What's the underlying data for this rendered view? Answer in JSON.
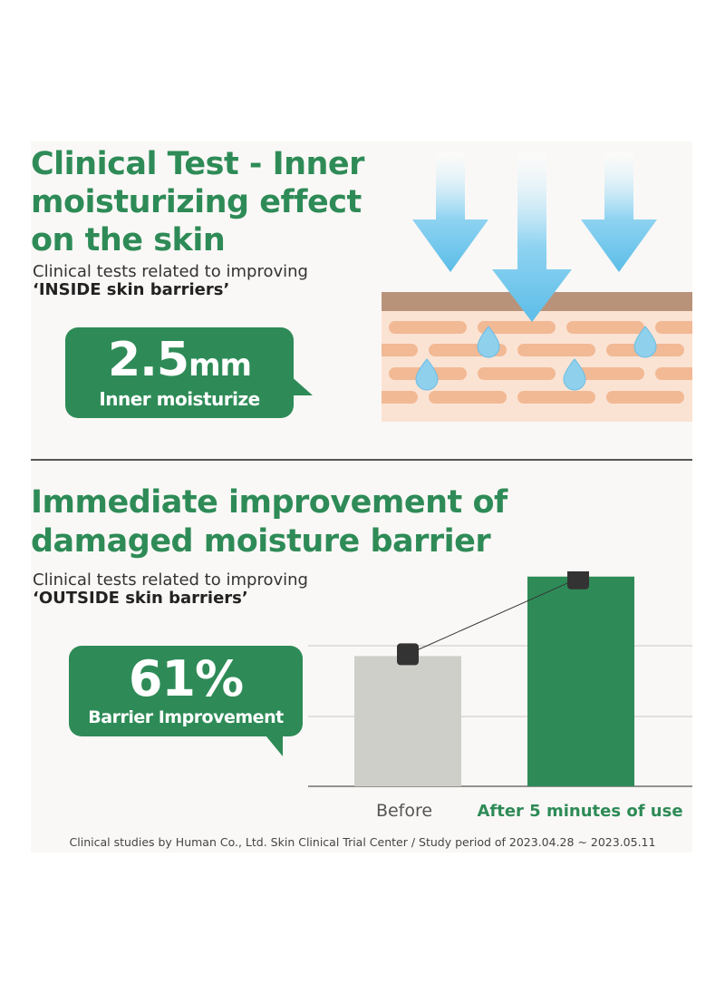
{
  "section1": {
    "title": "Clinical Test - Inner moisturizing effect on the skin",
    "subtitle_line1": "Clinical tests related to improving",
    "subtitle_line2": "‘INSIDE skin barriers’",
    "stat_value": "2.5",
    "stat_unit": "mm",
    "stat_label": "Inner moisturize"
  },
  "section2": {
    "title": "Immediate improvement of damaged moisture barrier",
    "subtitle_line1": "Clinical tests related to improving",
    "subtitle_line2": "‘OUTSIDE skin barriers’",
    "stat_value": "61%",
    "stat_label": "Barrier Improvement"
  },
  "footer": "Clinical studies by Human Co., Ltd. Skin Clinical Trial Center / Study period of 2023.04.28 ~ 2023.05.11",
  "colors": {
    "green": "#2e8b57",
    "before_bar": "#cfcfca",
    "marker": "#333333",
    "arrow": "#6ec6ea",
    "skin_top": "#b8937a",
    "cells": "#f2b995"
  },
  "chart_data": {
    "type": "bar",
    "categories": [
      "Before",
      "After 5 minutes of use"
    ],
    "values": [
      100,
      161
    ],
    "unit": "%",
    "ylim": [
      0,
      165
    ],
    "grid": true,
    "line_overlay": true,
    "title": "",
    "xlabel": "",
    "ylabel": ""
  }
}
